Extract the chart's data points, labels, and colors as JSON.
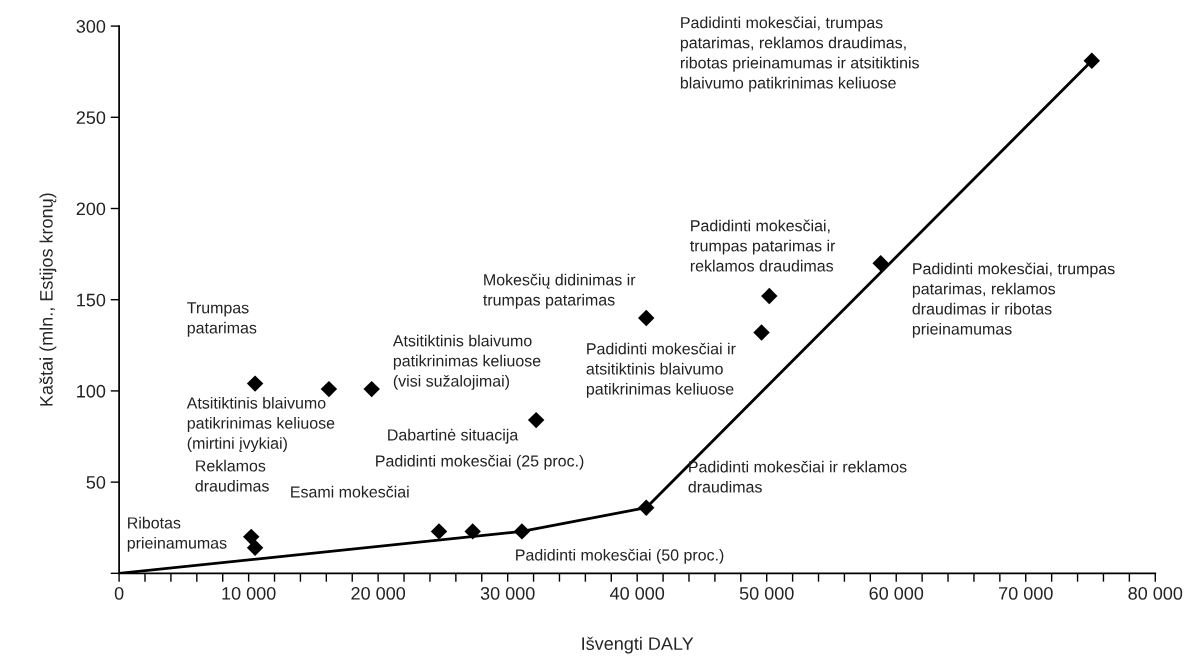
{
  "chart_data": {
    "type": "scatter",
    "xlabel": "Išvengti DALY",
    "ylabel": "Kaštai (mln., Estijos kronų)",
    "xlim": [
      0,
      80000
    ],
    "ylim": [
      0,
      300
    ],
    "xticks": [
      0,
      {
        "value": 2000,
        "label": null
      },
      {
        "value": 4000,
        "label": null
      },
      {
        "value": 6000,
        "label": null
      },
      {
        "value": 8000,
        "label": null
      },
      {
        "value": 10000,
        "label": "10 000"
      },
      {
        "value": 12000,
        "label": null
      },
      {
        "value": 14000,
        "label": null
      },
      {
        "value": 16000,
        "label": null
      },
      {
        "value": 18000,
        "label": null
      },
      {
        "value": 20000,
        "label": "20 000"
      },
      {
        "value": 22000,
        "label": null
      },
      {
        "value": 24000,
        "label": null
      },
      {
        "value": 26000,
        "label": null
      },
      {
        "value": 28000,
        "label": null
      },
      {
        "value": 30000,
        "label": "30 000"
      },
      {
        "value": 32000,
        "label": null
      },
      {
        "value": 34000,
        "label": null
      },
      {
        "value": 36000,
        "label": null
      },
      {
        "value": 38000,
        "label": null
      },
      {
        "value": 40000,
        "label": "40 000"
      },
      {
        "value": 42000,
        "label": null
      },
      {
        "value": 44000,
        "label": null
      },
      {
        "value": 46000,
        "label": null
      },
      {
        "value": 48000,
        "label": null
      },
      {
        "value": 50000,
        "label": "50 000"
      },
      {
        "value": 52000,
        "label": null
      },
      {
        "value": 54000,
        "label": null
      },
      {
        "value": 56000,
        "label": null
      },
      {
        "value": 58000,
        "label": null
      },
      {
        "value": 60000,
        "label": "60 000"
      },
      {
        "value": 62000,
        "label": null
      },
      {
        "value": 64000,
        "label": null
      },
      {
        "value": 66000,
        "label": null
      },
      {
        "value": 68000,
        "label": null
      },
      {
        "value": 70000,
        "label": "70 000"
      },
      {
        "value": 72000,
        "label": null
      },
      {
        "value": 74000,
        "label": null
      },
      {
        "value": 76000,
        "label": null
      },
      {
        "value": 78000,
        "label": null
      },
      {
        "value": 80000,
        "label": "80 000"
      }
    ],
    "yticks": [
      {
        "value": 0,
        "label": null
      },
      50,
      100,
      150,
      200,
      250,
      300
    ],
    "line_style": "solid",
    "series": [
      {
        "marker": "diamond",
        "color": "#000000",
        "x": [
          10500,
          10200,
          24700,
          27300,
          31100,
          40700,
          32200,
          10500,
          16200,
          19500,
          40700,
          49600,
          50200,
          58800,
          75100
        ],
        "values": [
          14,
          20,
          23,
          23,
          23,
          36,
          84,
          104,
          101,
          101,
          140,
          132,
          152,
          170,
          281
        ]
      },
      {
        "type": "line",
        "color": "#000000",
        "x": [
          0,
          31100,
          40700,
          75100
        ],
        "values": [
          0,
          23,
          36,
          281
        ]
      }
    ],
    "annotations": [
      "Ribotas\nprieinamumas",
      "Reklamos\ndraudimas",
      "Esami mokesčiai",
      "Padidinti mokesčiai (25 proc.)",
      "Padidinti mokesčiai (50 proc.)",
      "Padidinti mokesčiai ir reklamos\ndraudimas",
      "Dabartinė situacija",
      "Trumpas\npatarimas",
      "Atsitiktinis blaivumo\npatikrinimas keliuose\n(mirtini įvykiai)",
      "Atsitiktinis blaivumo\npatikrinimas keliuose\n(visi sužalojimai)",
      "Mokesčių didinimas ir\ntrumpas patarimas",
      "Padidinti mokesčiai ir\natsitiktinis blaivumo\npatikrinimas keliuose",
      "Padidinti mokesčiai,\ntrumpas patarimas ir\nreklamos draudimas",
      "Padidinti mokesčiai, trumpas\npatarimas, reklamos\ndraudimas ir ribotas\nprieinamumas",
      "Padidinti mokesčiai, trumpas\npatarimas, reklamos draudimas,\nribotas prieinamumas ir atsitiktinis\nblaivumo patikrinimas keliuose"
    ]
  }
}
